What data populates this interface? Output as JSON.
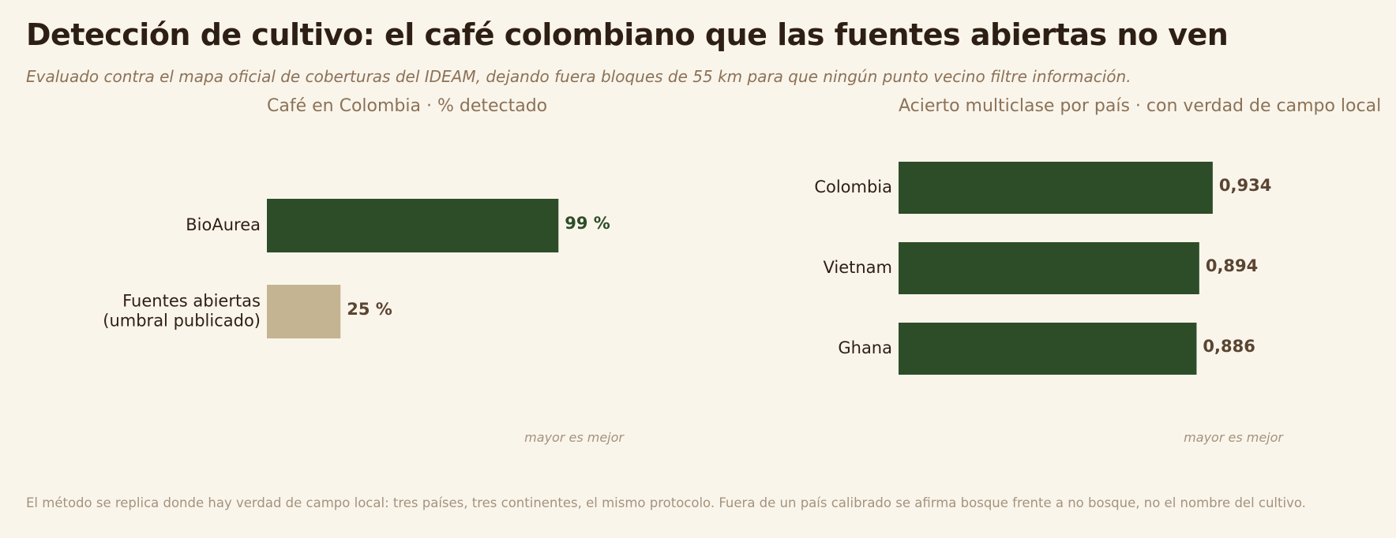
{
  "title": "Detección de cultivo: el café colombiano que las fuentes abiertas no ven",
  "subtitle": "Evaluado contra el mapa oficial de coberturas del IDEAM, dejando fuera bloques de 55 km para que ningún punto vecino filtre información.",
  "footer": "El método se replica donde hay verdad de campo local: tres países, tres continentes, el mismo protocolo.  Fuera de un país calibrado se afirma bosque frente a no bosque, no el nombre del cultivo.",
  "colors": {
    "background": "#faf5eb",
    "dark_green": "#2d4d29",
    "tan": "#c4b491",
    "label_brown": "#5a4532"
  },
  "chart_data": [
    {
      "type": "bar",
      "orientation": "horizontal",
      "title": "Café en Colombia  ·  % detectado",
      "categories": [
        "BioAurea",
        "Fuentes abiertas\n(umbral publicado)"
      ],
      "values": [
        99,
        25
      ],
      "value_labels": [
        "99 %",
        "25 %"
      ],
      "bar_colors": [
        "#2d4d29",
        "#c4b491"
      ],
      "label_colors": [
        "#2d4d29",
        "#5a4532"
      ],
      "xlim": [
        0,
        100
      ],
      "note": "mayor es mejor"
    },
    {
      "type": "bar",
      "orientation": "horizontal",
      "title": "Acierto multiclase por país  ·  con verdad de campo local",
      "categories": [
        "Colombia",
        "Vietnam",
        "Ghana"
      ],
      "values": [
        0.934,
        0.894,
        0.886
      ],
      "value_labels": [
        "0,934",
        "0,894",
        "0,886"
      ],
      "bar_colors": [
        "#2d4d29",
        "#2d4d29",
        "#2d4d29"
      ],
      "label_colors": [
        "#5a4532",
        "#5a4532",
        "#5a4532"
      ],
      "xlim": [
        0,
        1
      ],
      "note": "mayor es mejor"
    }
  ]
}
